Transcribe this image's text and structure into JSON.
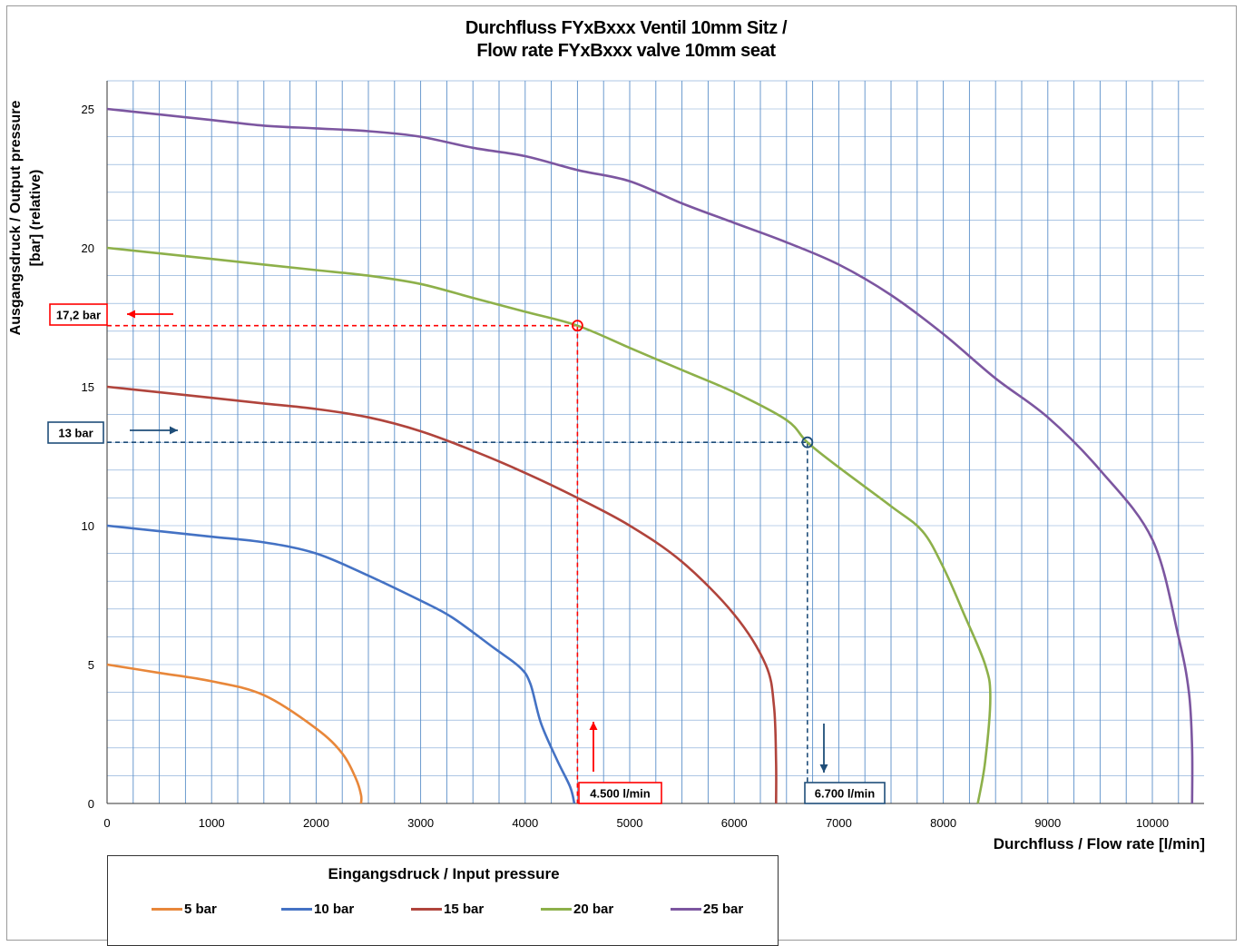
{
  "chart_data": {
    "type": "line",
    "title_line1": "Durchfluss FYxBxxx Ventil 10mm Sitz /",
    "title_line2": "Flow rate FYxBxxx valve 10mm seat",
    "ylabel_line1": "Ausgangsdruck / Output pressure",
    "ylabel_line2": "[bar] (relative)",
    "xlabel": "Durchfluss / Flow rate  [l/min]",
    "xlim": [
      0,
      10500
    ],
    "ylim": [
      0,
      25
    ],
    "x_ticks": [
      0,
      1000,
      2000,
      3000,
      4000,
      5000,
      6000,
      7000,
      8000,
      9000,
      10000
    ],
    "y_ticks": [
      0,
      5,
      10,
      15,
      20,
      25
    ],
    "x_minor_step": 250,
    "y_minor_step": 1,
    "grid": true,
    "legend_title": "Eingangsdruck / Input pressure",
    "legend_placement": "bottom",
    "series": [
      {
        "name": "5 bar",
        "color": "#e8873a",
        "points": [
          [
            0,
            5
          ],
          [
            500,
            4.7
          ],
          [
            1000,
            4.4
          ],
          [
            1500,
            3.9
          ],
          [
            2000,
            2.7
          ],
          [
            2250,
            1.8
          ],
          [
            2380,
            0.9
          ],
          [
            2430,
            0.3
          ],
          [
            2430,
            0
          ]
        ]
      },
      {
        "name": "10 bar",
        "color": "#4472c4",
        "points": [
          [
            0,
            10
          ],
          [
            500,
            9.8
          ],
          [
            1000,
            9.6
          ],
          [
            1500,
            9.4
          ],
          [
            2000,
            9.0
          ],
          [
            2500,
            8.2
          ],
          [
            3000,
            7.3
          ],
          [
            3300,
            6.7
          ],
          [
            3700,
            5.6
          ],
          [
            3950,
            4.9
          ],
          [
            4050,
            4.3
          ],
          [
            4150,
            2.9
          ],
          [
            4300,
            1.6
          ],
          [
            4430,
            0.6
          ],
          [
            4470,
            0
          ]
        ]
      },
      {
        "name": "15 bar",
        "color": "#b0443c",
        "points": [
          [
            0,
            15
          ],
          [
            500,
            14.8
          ],
          [
            1000,
            14.6
          ],
          [
            1500,
            14.4
          ],
          [
            2000,
            14.2
          ],
          [
            2500,
            13.9
          ],
          [
            3000,
            13.4
          ],
          [
            3500,
            12.7
          ],
          [
            4000,
            11.9
          ],
          [
            4500,
            11.0
          ],
          [
            5000,
            10.0
          ],
          [
            5500,
            8.7
          ],
          [
            6000,
            6.8
          ],
          [
            6300,
            5.0
          ],
          [
            6380,
            3.5
          ],
          [
            6400,
            1.5
          ],
          [
            6400,
            0
          ]
        ]
      },
      {
        "name": "20 bar",
        "color": "#8db04a",
        "points": [
          [
            0,
            20
          ],
          [
            500,
            19.8
          ],
          [
            1000,
            19.6
          ],
          [
            1500,
            19.4
          ],
          [
            2000,
            19.2
          ],
          [
            2500,
            19.0
          ],
          [
            3000,
            18.7
          ],
          [
            3500,
            18.2
          ],
          [
            4000,
            17.7
          ],
          [
            4500,
            17.2
          ],
          [
            5000,
            16.4
          ],
          [
            5500,
            15.6
          ],
          [
            6000,
            14.8
          ],
          [
            6500,
            13.8
          ],
          [
            6700,
            13.0
          ],
          [
            7000,
            12.1
          ],
          [
            7500,
            10.7
          ],
          [
            7800,
            9.8
          ],
          [
            8000,
            8.5
          ],
          [
            8200,
            6.8
          ],
          [
            8400,
            5.0
          ],
          [
            8450,
            3.8
          ],
          [
            8400,
            1.5
          ],
          [
            8330,
            0
          ]
        ]
      },
      {
        "name": "25 bar",
        "color": "#7c56a0",
        "points": [
          [
            0,
            25
          ],
          [
            500,
            24.8
          ],
          [
            1000,
            24.6
          ],
          [
            1500,
            24.4
          ],
          [
            2000,
            24.3
          ],
          [
            2500,
            24.2
          ],
          [
            3000,
            24.0
          ],
          [
            3500,
            23.6
          ],
          [
            4000,
            23.3
          ],
          [
            4500,
            22.8
          ],
          [
            5000,
            22.4
          ],
          [
            5500,
            21.6
          ],
          [
            6000,
            20.9
          ],
          [
            6500,
            20.2
          ],
          [
            7000,
            19.4
          ],
          [
            7500,
            18.3
          ],
          [
            8000,
            16.9
          ],
          [
            8500,
            15.3
          ],
          [
            9000,
            13.9
          ],
          [
            9500,
            12.0
          ],
          [
            10000,
            9.5
          ],
          [
            10250,
            6.0
          ],
          [
            10350,
            4.0
          ],
          [
            10380,
            2.0
          ],
          [
            10380,
            0
          ]
        ]
      }
    ],
    "annotations": [
      {
        "label": "17,2 bar",
        "color": "#ff0000",
        "x": 4500,
        "y": 17.2,
        "arrow": "left"
      },
      {
        "label": "4.500 l/min",
        "color": "#ff0000",
        "x": 4500,
        "y": 0,
        "arrow": "up"
      },
      {
        "label": "13 bar",
        "color": "#1f4e79",
        "x": 6700,
        "y": 13,
        "arrow": "right"
      },
      {
        "label": "6.700 l/min",
        "color": "#1f4e79",
        "x": 6700,
        "y": 0,
        "arrow": "down"
      }
    ]
  }
}
